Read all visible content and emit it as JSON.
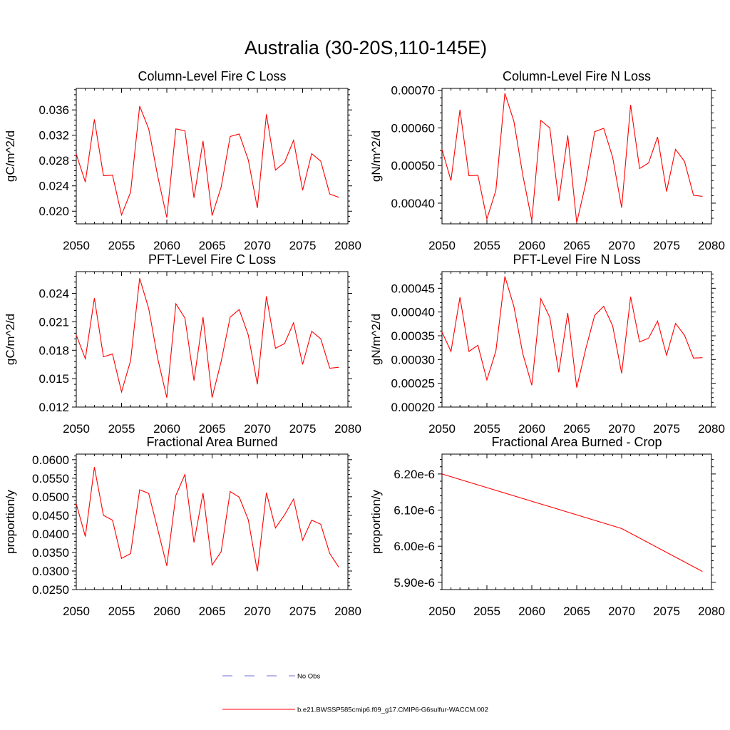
{
  "figure": {
    "title": "Australia (30-20S,110-145E)"
  },
  "chart_data": [
    {
      "type": "line",
      "title": "Column-Level Fire C Loss",
      "ylabel": "gC/m^2/d",
      "xlim": [
        2050,
        2080
      ],
      "ylim": [
        0.018,
        0.0394
      ],
      "x_ticks": [
        2050,
        2055,
        2060,
        2065,
        2070,
        2075,
        2080
      ],
      "x_tick_labels": [
        "2050",
        "2055",
        "2060",
        "2065",
        "2070",
        "2075",
        "2080"
      ],
      "y_ticks": [
        0.02,
        0.024,
        0.028,
        0.032,
        0.036
      ],
      "y_tick_labels": [
        "0.020",
        "0.024",
        "0.028",
        "0.032",
        "0.036"
      ],
      "x": [
        2050,
        2051,
        2052,
        2053,
        2054,
        2055,
        2056,
        2057,
        2058,
        2059,
        2060,
        2061,
        2062,
        2063,
        2064,
        2065,
        2066,
        2067,
        2068,
        2069,
        2070,
        2071,
        2072,
        2073,
        2074,
        2075,
        2076,
        2077,
        2078,
        2079
      ],
      "series": [
        {
          "color": "#ff0000",
          "values": [
            0.029,
            0.0246,
            0.0345,
            0.0256,
            0.0257,
            0.0194,
            0.023,
            0.0366,
            0.033,
            0.0255,
            0.019,
            0.033,
            0.0327,
            0.0221,
            0.0311,
            0.0193,
            0.0238,
            0.0318,
            0.0322,
            0.0281,
            0.0205,
            0.0353,
            0.0265,
            0.0277,
            0.0312,
            0.0233,
            0.0291,
            0.0279,
            0.0227,
            0.0222
          ]
        }
      ]
    },
    {
      "type": "line",
      "title": "Column-Level Fire N Loss",
      "ylabel": "gN/m^2/d",
      "xlim": [
        2050,
        2080
      ],
      "ylim": [
        0.000345,
        0.000705
      ],
      "x_ticks": [
        2050,
        2055,
        2060,
        2065,
        2070,
        2075,
        2080
      ],
      "x_tick_labels": [
        "2050",
        "2055",
        "2060",
        "2065",
        "2070",
        "2075",
        "2080"
      ],
      "y_ticks": [
        0.0004,
        0.0005,
        0.0006,
        0.0007
      ],
      "y_tick_labels": [
        "0.00040",
        "0.00050",
        "0.00060",
        "0.00070"
      ],
      "x": [
        2050,
        2051,
        2052,
        2053,
        2054,
        2055,
        2056,
        2057,
        2058,
        2059,
        2060,
        2061,
        2062,
        2063,
        2064,
        2065,
        2066,
        2067,
        2068,
        2069,
        2070,
        2071,
        2072,
        2073,
        2074,
        2075,
        2076,
        2077,
        2078,
        2079
      ],
      "series": [
        {
          "color": "#ff0000",
          "values": [
            0.000543,
            0.00046,
            0.000648,
            0.000473,
            0.000474,
            0.000358,
            0.000434,
            0.000692,
            0.000618,
            0.000474,
            0.000354,
            0.00062,
            0.0006,
            0.000406,
            0.00058,
            0.000348,
            0.000452,
            0.00059,
            0.000599,
            0.000522,
            0.000388,
            0.000661,
            0.000492,
            0.000507,
            0.000576,
            0.000431,
            0.000543,
            0.000511,
            0.000421,
            0.000418
          ]
        }
      ]
    },
    {
      "type": "line",
      "title": "PFT-Level Fire C Loss",
      "ylabel": "gC/m^2/d",
      "xlim": [
        2050,
        2080
      ],
      "ylim": [
        0.012,
        0.0263
      ],
      "x_ticks": [
        2050,
        2055,
        2060,
        2065,
        2070,
        2075,
        2080
      ],
      "x_tick_labels": [
        "2050",
        "2055",
        "2060",
        "2065",
        "2070",
        "2075",
        "2080"
      ],
      "y_ticks": [
        0.012,
        0.015,
        0.018,
        0.021,
        0.024
      ],
      "y_tick_labels": [
        "0.012",
        "0.015",
        "0.018",
        "0.021",
        "0.024"
      ],
      "x": [
        2050,
        2051,
        2052,
        2053,
        2054,
        2055,
        2056,
        2057,
        2058,
        2059,
        2060,
        2061,
        2062,
        2063,
        2064,
        2065,
        2066,
        2067,
        2068,
        2069,
        2070,
        2071,
        2072,
        2073,
        2074,
        2075,
        2076,
        2077,
        2078,
        2079
      ],
      "series": [
        {
          "color": "#ff0000",
          "values": [
            0.0196,
            0.0171,
            0.0235,
            0.0173,
            0.0176,
            0.0136,
            0.0169,
            0.0256,
            0.0224,
            0.0171,
            0.013,
            0.0229,
            0.0214,
            0.0148,
            0.0215,
            0.013,
            0.0168,
            0.0215,
            0.0223,
            0.0196,
            0.0144,
            0.0237,
            0.0182,
            0.0187,
            0.0209,
            0.0165,
            0.02,
            0.0192,
            0.0161,
            0.0162
          ]
        }
      ]
    },
    {
      "type": "line",
      "title": "PFT-Level Fire N Loss",
      "ylabel": "gN/m^2/d",
      "xlim": [
        2050,
        2080
      ],
      "ylim": [
        0.0002,
        0.000485
      ],
      "x_ticks": [
        2050,
        2055,
        2060,
        2065,
        2070,
        2075,
        2080
      ],
      "x_tick_labels": [
        "2050",
        "2055",
        "2060",
        "2065",
        "2070",
        "2075",
        "2080"
      ],
      "y_ticks": [
        0.0002,
        0.00025,
        0.0003,
        0.00035,
        0.0004,
        0.00045
      ],
      "y_tick_labels": [
        "0.00020",
        "0.00025",
        "0.00030",
        "0.00035",
        "0.00040",
        "0.00045"
      ],
      "x": [
        2050,
        2051,
        2052,
        2053,
        2054,
        2055,
        2056,
        2057,
        2058,
        2059,
        2060,
        2061,
        2062,
        2063,
        2064,
        2065,
        2066,
        2067,
        2068,
        2069,
        2070,
        2071,
        2072,
        2073,
        2074,
        2075,
        2076,
        2077,
        2078,
        2079
      ],
      "series": [
        {
          "color": "#ff0000",
          "values": [
            0.000358,
            0.000317,
            0.000431,
            0.000317,
            0.00033,
            0.000257,
            0.000318,
            0.000475,
            0.000412,
            0.000312,
            0.000246,
            0.000428,
            0.000389,
            0.000273,
            0.000398,
            0.000241,
            0.000322,
            0.000393,
            0.000412,
            0.000371,
            0.000271,
            0.000432,
            0.000337,
            0.000345,
            0.000381,
            0.000309,
            0.000376,
            0.000351,
            0.000303,
            0.000304
          ]
        }
      ]
    },
    {
      "type": "line",
      "title": "Fractional Area Burned",
      "ylabel": "proportion/y",
      "xlim": [
        2050,
        2080
      ],
      "ylim": [
        0.025,
        0.0615
      ],
      "x_ticks": [
        2050,
        2055,
        2060,
        2065,
        2070,
        2075,
        2080
      ],
      "x_tick_labels": [
        "2050",
        "2055",
        "2060",
        "2065",
        "2070",
        "2075",
        "2080"
      ],
      "y_ticks": [
        0.025,
        0.03,
        0.035,
        0.04,
        0.045,
        0.05,
        0.055,
        0.06
      ],
      "y_tick_labels": [
        "0.0250",
        "0.0300",
        "0.0350",
        "0.0400",
        "0.0450",
        "0.0500",
        "0.0550",
        "0.0600"
      ],
      "x": [
        2050,
        2051,
        2052,
        2053,
        2054,
        2055,
        2056,
        2057,
        2058,
        2059,
        2060,
        2061,
        2062,
        2063,
        2064,
        2065,
        2066,
        2067,
        2068,
        2069,
        2070,
        2071,
        2072,
        2073,
        2074,
        2075,
        2076,
        2077,
        2078,
        2079
      ],
      "series": [
        {
          "color": "#ff0000",
          "values": [
            0.0481,
            0.0393,
            0.058,
            0.045,
            0.0437,
            0.0334,
            0.0347,
            0.0519,
            0.0509,
            0.0412,
            0.0314,
            0.0504,
            0.056,
            0.0377,
            0.051,
            0.0316,
            0.0352,
            0.0514,
            0.0499,
            0.0438,
            0.0299,
            0.0511,
            0.0416,
            0.0451,
            0.0494,
            0.0383,
            0.0437,
            0.0426,
            0.0347,
            0.031
          ]
        }
      ]
    },
    {
      "type": "line",
      "title": "Fractional Area Burned - Crop",
      "ylabel": "proportion/y",
      "xlim": [
        2050,
        2080
      ],
      "ylim": [
        5.88e-06,
        6.255e-06
      ],
      "x_ticks": [
        2050,
        2055,
        2060,
        2065,
        2070,
        2075,
        2080
      ],
      "x_tick_labels": [
        "2050",
        "2055",
        "2060",
        "2065",
        "2070",
        "2075",
        "2080"
      ],
      "y_ticks": [
        5.9e-06,
        6e-06,
        6.1e-06,
        6.2e-06
      ],
      "y_tick_labels": [
        "5.90e-6",
        "6.00e-6",
        "6.10e-6",
        "6.20e-6"
      ],
      "x": [
        2050,
        2070,
        2079
      ],
      "series": [
        {
          "color": "#ff0000",
          "values": [
            6.2e-06,
            6.049e-06,
            5.93e-06
          ]
        }
      ]
    }
  ],
  "legend": {
    "placement": "bottom-center",
    "entries": [
      {
        "label": "No Obs",
        "color": "#6f6fd8",
        "style": "dashed"
      },
      {
        "label": "b.e21.BWSSP585cmip6.f09_g17.CMIP6-G6sulfur-WACCM.002",
        "color": "#ff0000",
        "style": "solid"
      }
    ]
  }
}
